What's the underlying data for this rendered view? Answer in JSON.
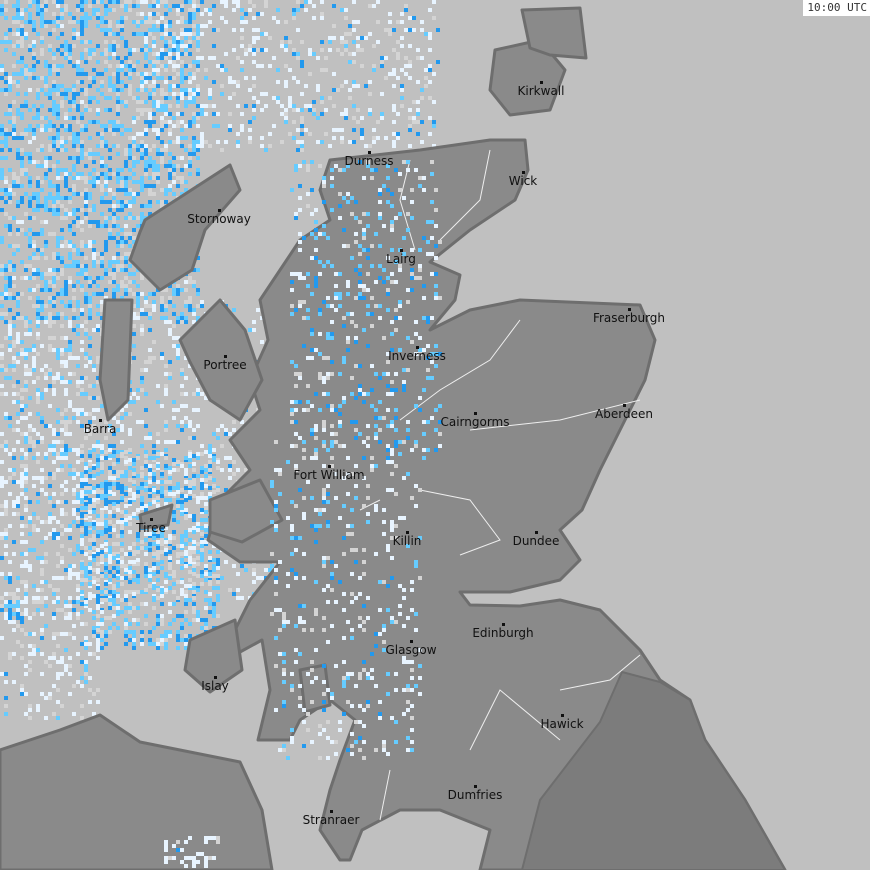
{
  "timestamp": "10:00 UTC",
  "colors": {
    "sea": "#c0c0c0",
    "land": "#8a8a8a",
    "land_england": "#7c7c7c",
    "coast": "#6e6e6e",
    "rain_light": "#e8f4ff",
    "rain_mid": "#66ccff",
    "rain_heavy": "#2299ee"
  },
  "places": [
    "Kirkwall",
    "Wick",
    "Durness",
    "Stornoway",
    "Lairg",
    "Fraserburgh",
    "Inverness",
    "Portree",
    "Barra",
    "Cairngorms",
    "Aberdeen",
    "Fort William",
    "Tiree",
    "Killin",
    "Dundee",
    "Edinburgh",
    "Glasgow",
    "Islay",
    "Hawick",
    "Dumfries",
    "Stranraer"
  ]
}
